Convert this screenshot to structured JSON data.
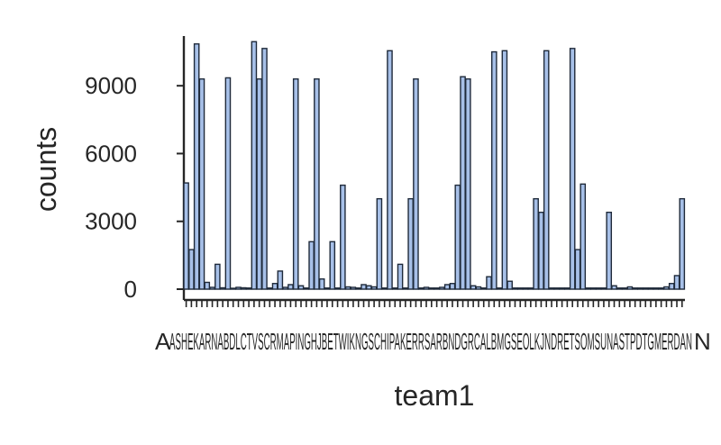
{
  "chart_data": {
    "type": "bar",
    "xlabel": "team1",
    "ylabel": "counts",
    "ylim": [
      0,
      11200
    ],
    "yticks": [
      0,
      3000,
      6000,
      9000
    ],
    "bar_color": "#a7c0e8",
    "edge_color": "#1f2a3a",
    "values": [
      4700,
      1750,
      10850,
      9300,
      300,
      80,
      1100,
      60,
      9350,
      40,
      80,
      60,
      50,
      10950,
      9300,
      10650,
      50,
      250,
      800,
      80,
      200,
      9300,
      150,
      50,
      2100,
      9300,
      450,
      50,
      2100,
      50,
      4600,
      100,
      80,
      50,
      200,
      150,
      100,
      4000,
      50,
      10550,
      50,
      1100,
      50,
      4000,
      9300,
      50,
      80,
      50,
      50,
      80,
      200,
      250,
      4600,
      9400,
      9300,
      150,
      100,
      50,
      550,
      10500,
      50,
      10550,
      350,
      50,
      50,
      50,
      50,
      4000,
      3400,
      10550,
      50,
      50,
      50,
      50,
      10650,
      1750,
      4650,
      50,
      50,
      50,
      50,
      3400,
      150,
      50,
      50,
      100,
      50,
      50,
      50,
      50,
      50,
      50,
      100,
      250,
      600,
      4000
    ],
    "tick_labels_first": "A",
    "tick_labels_last": "N",
    "tick_label_text": "ASHEKARNABDLCTVSCRMAPINGHJBETWIKNGSCHIPAKERRSARBNDGRCALBMGSEOLKJNDRETSOMSUNASTPDTGMERDAN"
  }
}
